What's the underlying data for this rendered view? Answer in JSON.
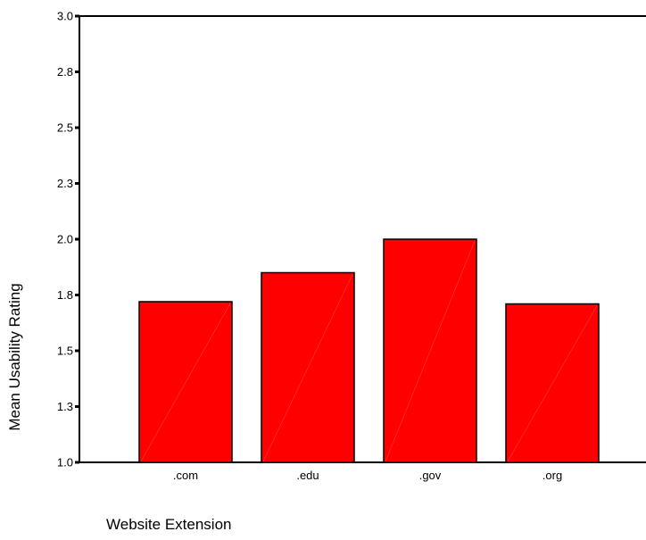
{
  "chart_data": {
    "type": "bar",
    "categories": [
      ".com",
      ".edu",
      ".gov",
      ".org"
    ],
    "values": [
      1.72,
      1.85,
      2.0,
      1.71
    ],
    "xlabel": "Website Extension",
    "ylabel": "Mean Usability Rating",
    "ylim": [
      1.0,
      3.0
    ],
    "yticks": [
      1.0,
      1.25,
      1.5,
      1.75,
      2.0,
      2.25,
      2.5,
      2.75,
      3.0
    ],
    "ytick_labels": [
      "1.0",
      "1.3",
      "1.5",
      "1.8",
      "2.0",
      "2.3",
      "2.5",
      "2.8",
      "3.0"
    ],
    "grid": false,
    "legend": "none",
    "bar_color": "#ff0000"
  }
}
